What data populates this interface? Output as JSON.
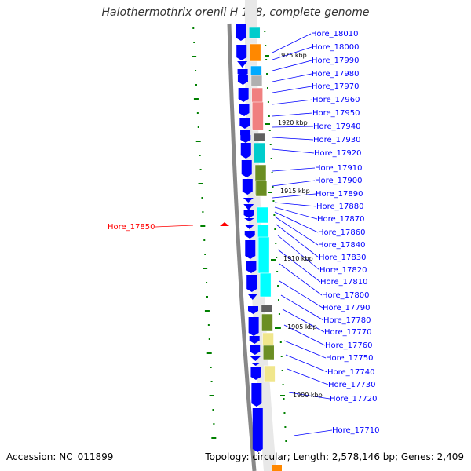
{
  "title": "Halothermothrix orenii H 168, complete genome",
  "footer": {
    "accession": "Accession: NC_011899",
    "stats": "Topology: circular; Length: 2,578,146 bp; Genes: 2,409"
  },
  "colors": {
    "gene_label": "#0000ff",
    "selected_label": "#ff0000",
    "forward_gene": "#0000ff",
    "backbone": "#888888",
    "tick": "#008000"
  },
  "selected_gene": "Hore_17850",
  "gene_labels": [
    "Hore_18010",
    "Hore_18000",
    "Hore_17990",
    "Hore_17980",
    "Hore_17970",
    "Hore_17960",
    "Hore_17950",
    "Hore_17940",
    "Hore_17930",
    "Hore_17920",
    "Hore_17910",
    "Hore_17900",
    "Hore_17890",
    "Hore_17880",
    "Hore_17870",
    "Hore_17860",
    "Hore_17840",
    "Hore_17830",
    "Hore_17820",
    "Hore_17810",
    "Hore_17800",
    "Hore_17790",
    "Hore_17780",
    "Hore_17770",
    "Hore_17760",
    "Hore_17750",
    "Hore_17740",
    "Hore_17730",
    "Hore_17720",
    "Hore_17710"
  ],
  "kbp_labels": [
    "1925 kbp",
    "1920 kbp",
    "1915 kbp",
    "1910 kbp",
    "1905 kbp",
    "1900 kbp"
  ],
  "cog_colors": [
    "#00cccc",
    "#ff8800",
    "#00aaff",
    "#b0b0b0",
    "#f08080",
    "#f08080",
    "#606060",
    "#00cccc",
    "#6b8e23",
    "#6b8e23",
    "#00ffff",
    "#00ffff",
    "#00ffff",
    "#00ffff",
    "#606060",
    "#6b8e23",
    "#f0e68c",
    "#6b8e23",
    "#f0e68c"
  ]
}
